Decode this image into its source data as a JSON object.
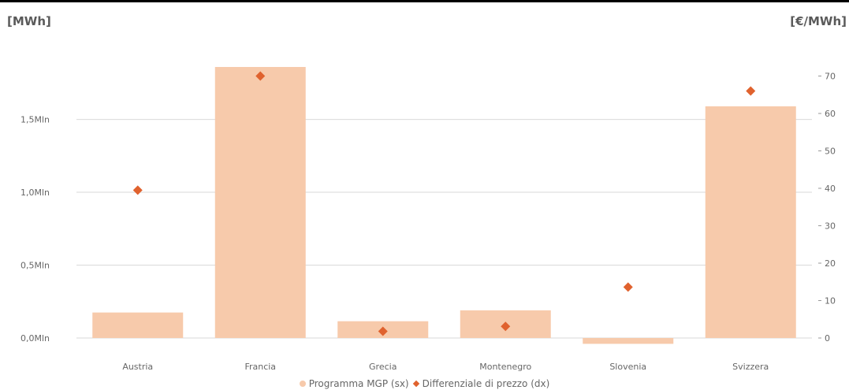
{
  "chart_data": {
    "type": "bar",
    "categories": [
      "Austria",
      "Francia",
      "Grecia",
      "Montenegro",
      "Slovenia",
      "Svizzera"
    ],
    "series": [
      {
        "name": "Programma MGP (sx)",
        "type": "bar",
        "axis": "left",
        "color": "#f7caab",
        "values": [
          175000,
          1860000,
          115000,
          190000,
          -40000,
          1590000
        ]
      },
      {
        "name": "Differenziale di prezzo  (dx)",
        "type": "scatter",
        "marker": "diamond",
        "axis": "right",
        "color": "#e0622e",
        "values": [
          39.5,
          70,
          1.8,
          3.1,
          13.6,
          66
        ]
      }
    ],
    "left_axis": {
      "unit_label": "[MWh]",
      "ticks": [
        0,
        500000,
        1000000,
        1500000
      ],
      "tick_labels": [
        "0,0Mln",
        "0,5Mln",
        "1,0Mln",
        "1,5Mln"
      ],
      "ylim": [
        0,
        1952000
      ]
    },
    "right_axis": {
      "unit_label": "[€/MWh]",
      "ticks": [
        0,
        10,
        20,
        30,
        40,
        50,
        60,
        70
      ],
      "tick_labels": [
        "0",
        "10",
        "20",
        "30",
        "40",
        "50",
        "60",
        "70"
      ],
      "ylim": [
        0,
        76
      ]
    },
    "grid": true,
    "legend_position": "bottom"
  }
}
